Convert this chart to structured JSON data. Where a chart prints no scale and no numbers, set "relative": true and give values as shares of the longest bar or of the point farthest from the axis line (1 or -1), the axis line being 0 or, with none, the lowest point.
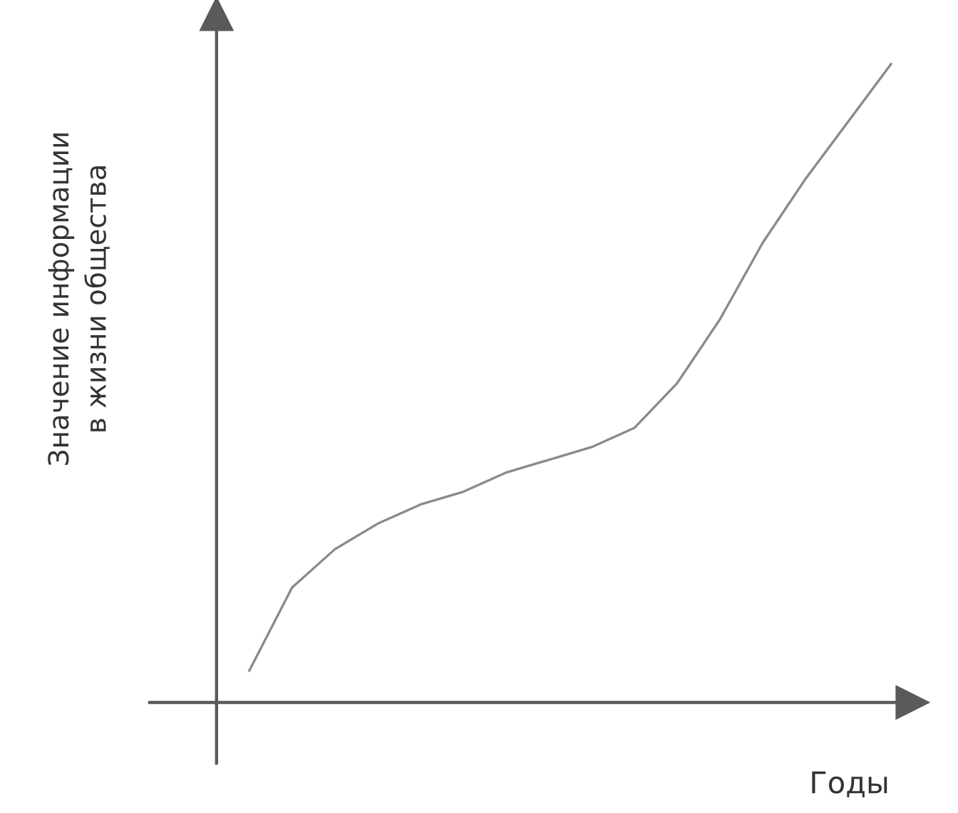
{
  "chart_data": {
    "type": "line",
    "relative": true,
    "ylabel": "Значение информации\nв жизни общества",
    "xlabel": "Годы",
    "categories": [
      null,
      null,
      null,
      null,
      null,
      null,
      null,
      null,
      null,
      null,
      null,
      null,
      null,
      null,
      null,
      null
    ],
    "series": [
      {
        "color": "#8a8a8a",
        "values": [
          0.05,
          0.18,
          0.24,
          0.28,
          0.31,
          0.33,
          0.36,
          0.38,
          0.4,
          0.43,
          0.5,
          0.6,
          0.72,
          0.82,
          0.91,
          1
        ]
      }
    ],
    "grid": false,
    "legend": false,
    "marker": "none",
    "line_style": "solid"
  }
}
